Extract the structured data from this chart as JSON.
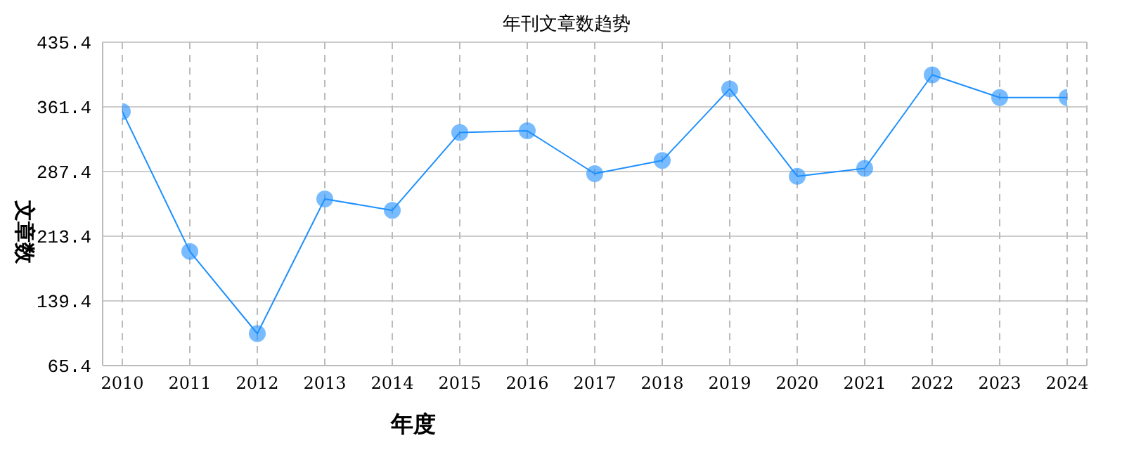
{
  "chart_data": {
    "type": "line",
    "title": "年刊文章数趋势",
    "xlabel": "年度",
    "ylabel": "文章数",
    "categories": [
      "2010",
      "2011",
      "2012",
      "2013",
      "2014",
      "2015",
      "2016",
      "2017",
      "2018",
      "2019",
      "2020",
      "2021",
      "2022",
      "2023",
      "2024"
    ],
    "series": [
      {
        "color": "#1e90ff",
        "values": [
          356,
          196,
          102,
          256,
          243,
          332,
          334,
          285,
          300,
          382,
          282,
          291,
          398,
          372,
          372
        ]
      }
    ],
    "ylim": [
      65.4,
      435.4
    ],
    "yticks": [
      65.4,
      139.4,
      213.4,
      287.4,
      361.4,
      435.4
    ],
    "grid": true,
    "marker": "circle",
    "line_style": "solid",
    "legend": false
  }
}
